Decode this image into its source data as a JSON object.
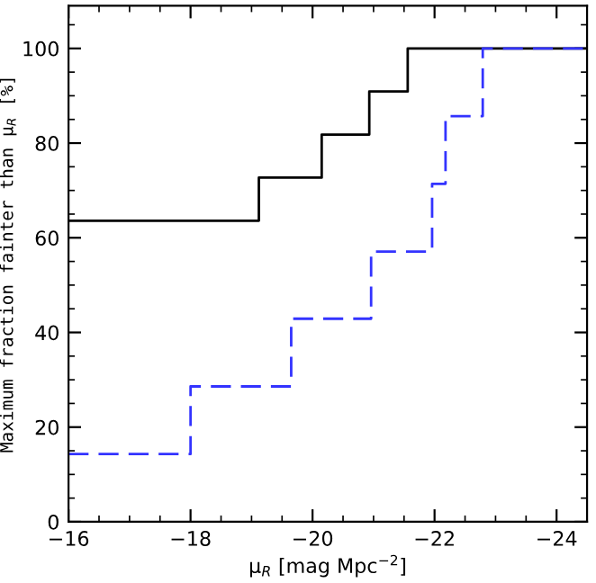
{
  "chart_data": {
    "type": "step",
    "xlabel": "μ$_{R}$ [mag Mpc$^{−2}$]",
    "ylabel": "Maximum fraction fainter than μ$_{R}$ [%]",
    "series": [
      {
        "color": "#000000",
        "line_style": "solid",
        "x": [
          -16,
          -19.12,
          -20.15,
          -20.93,
          -21.56,
          -24.5
        ],
        "values": [
          63.6,
          72.7,
          81.8,
          90.9,
          100,
          100
        ]
      },
      {
        "color": "#3333ff",
        "line_style": "dashed",
        "x": [
          -16,
          -18.0,
          -19.65,
          -20.96,
          -21.96,
          -22.18,
          -22.79,
          -24.5
        ],
        "values": [
          14.3,
          28.6,
          42.9,
          57.1,
          71.4,
          85.7,
          100,
          100
        ]
      }
    ],
    "xlim": [
      -16,
      -24.5
    ],
    "ylim": [
      0,
      109
    ],
    "xticks": [
      {
        "value": -16,
        "label": "−16"
      },
      {
        "value": -18,
        "label": "−18"
      },
      {
        "value": -20,
        "label": "−20"
      },
      {
        "value": -22,
        "label": "−22"
      },
      {
        "value": -24,
        "label": "−24"
      }
    ],
    "yticks": [
      0,
      20,
      40,
      60,
      80,
      100
    ],
    "grid": false,
    "legend": false
  }
}
